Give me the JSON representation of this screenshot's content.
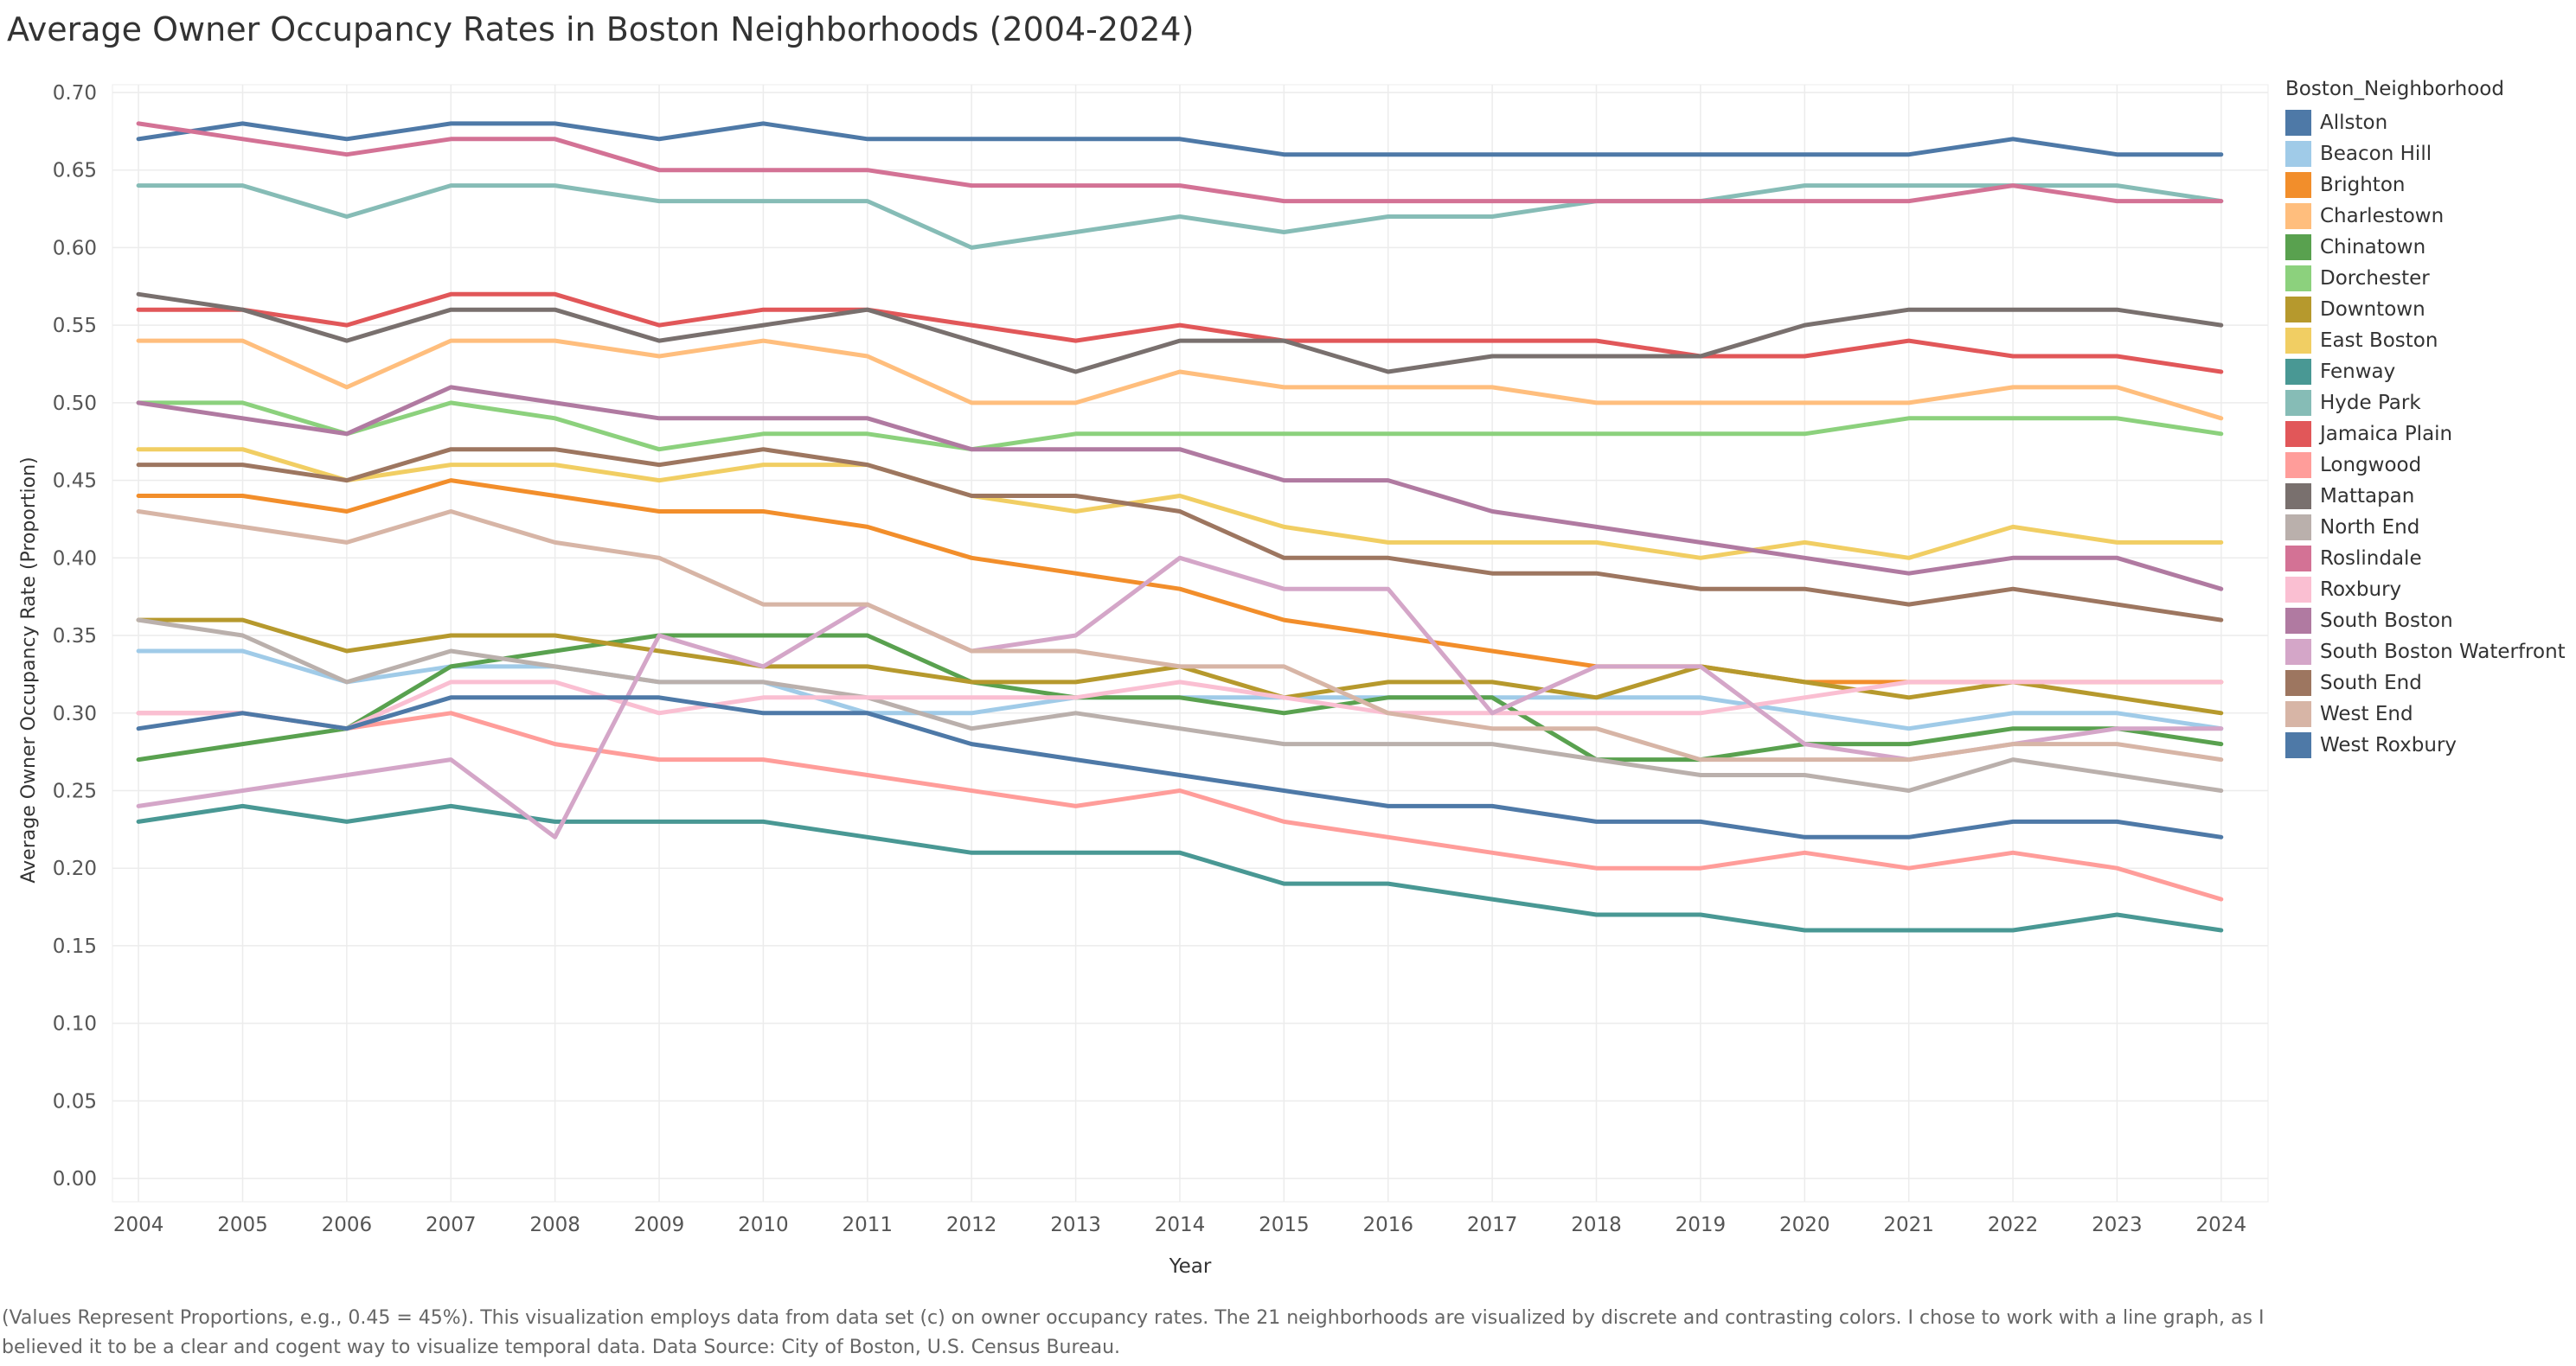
{
  "chart_data": {
    "type": "line",
    "title": "Average Owner Occupancy Rates in Boston Neighborhoods (2004-2024)",
    "xlabel": "Year",
    "ylabel": "Average Owner Occupancy Rate (Proportion)",
    "legend_title": "Boston_Neighborhood",
    "legend_position": "right",
    "grid": true,
    "xlim": [
      2003.75,
      2024.45
    ],
    "ylim": [
      -0.015,
      0.705
    ],
    "x_ticks": [
      "2004",
      "2005",
      "2006",
      "2007",
      "2008",
      "2009",
      "2010",
      "2011",
      "2012",
      "2013",
      "2014",
      "2015",
      "2016",
      "2017",
      "2018",
      "2019",
      "2020",
      "2021",
      "2022",
      "2023",
      "2024"
    ],
    "y_ticks": [
      "0.00",
      "0.05",
      "0.10",
      "0.15",
      "0.20",
      "0.25",
      "0.30",
      "0.35",
      "0.40",
      "0.45",
      "0.50",
      "0.55",
      "0.60",
      "0.65",
      "0.70"
    ],
    "x": [
      2004,
      2005,
      2006,
      2007,
      2008,
      2009,
      2010,
      2011,
      2012,
      2013,
      2014,
      2015,
      2016,
      2017,
      2018,
      2019,
      2020,
      2021,
      2022,
      2023,
      2024
    ],
    "series": [
      {
        "name": "Allston",
        "color": "#4e79a7",
        "values": [
          0.67,
          0.68,
          0.67,
          0.68,
          0.68,
          0.67,
          0.68,
          0.67,
          0.67,
          0.67,
          0.67,
          0.66,
          0.66,
          0.66,
          0.66,
          0.66,
          0.66,
          0.66,
          0.67,
          0.66,
          0.66
        ]
      },
      {
        "name": "Beacon Hill",
        "color": "#a0cbe8",
        "values": [
          0.34,
          0.34,
          0.32,
          0.33,
          0.33,
          0.32,
          0.32,
          0.3,
          0.3,
          0.31,
          0.31,
          0.31,
          0.31,
          0.31,
          0.31,
          0.31,
          0.3,
          0.29,
          0.3,
          0.3,
          0.29
        ]
      },
      {
        "name": "Brighton",
        "color": "#f28e2b",
        "values": [
          0.44,
          0.44,
          0.43,
          0.45,
          0.44,
          0.43,
          0.43,
          0.42,
          0.4,
          0.39,
          0.38,
          0.36,
          0.35,
          0.34,
          0.33,
          0.33,
          0.32,
          0.32,
          0.32,
          0.32,
          0.32
        ]
      },
      {
        "name": "Charlestown",
        "color": "#ffbe7d",
        "values": [
          0.54,
          0.54,
          0.51,
          0.54,
          0.54,
          0.53,
          0.54,
          0.53,
          0.5,
          0.5,
          0.52,
          0.51,
          0.51,
          0.51,
          0.5,
          0.5,
          0.5,
          0.5,
          0.51,
          0.51,
          0.49
        ]
      },
      {
        "name": "Chinatown",
        "color": "#59a14f",
        "values": [
          0.27,
          0.28,
          0.29,
          0.33,
          0.34,
          0.35,
          0.35,
          0.35,
          0.32,
          0.31,
          0.31,
          0.3,
          0.31,
          0.31,
          0.27,
          0.27,
          0.28,
          0.28,
          0.29,
          0.29,
          0.28
        ]
      },
      {
        "name": "Dorchester",
        "color": "#8cd17d",
        "values": [
          0.5,
          0.5,
          0.48,
          0.5,
          0.49,
          0.47,
          0.48,
          0.48,
          0.47,
          0.48,
          0.48,
          0.48,
          0.48,
          0.48,
          0.48,
          0.48,
          0.48,
          0.49,
          0.49,
          0.49,
          0.48
        ]
      },
      {
        "name": "Downtown",
        "color": "#b6992d",
        "values": [
          0.36,
          0.36,
          0.34,
          0.35,
          0.35,
          0.34,
          0.33,
          0.33,
          0.32,
          0.32,
          0.33,
          0.31,
          0.32,
          0.32,
          0.31,
          0.33,
          0.32,
          0.31,
          0.32,
          0.31,
          0.3
        ]
      },
      {
        "name": "East Boston",
        "color": "#f1ce63",
        "values": [
          0.47,
          0.47,
          0.45,
          0.46,
          0.46,
          0.45,
          0.46,
          0.46,
          0.44,
          0.43,
          0.44,
          0.42,
          0.41,
          0.41,
          0.41,
          0.4,
          0.41,
          0.4,
          0.42,
          0.41,
          0.41
        ]
      },
      {
        "name": "Fenway",
        "color": "#499894",
        "values": [
          0.23,
          0.24,
          0.23,
          0.24,
          0.23,
          0.23,
          0.23,
          0.22,
          0.21,
          0.21,
          0.21,
          0.19,
          0.19,
          0.18,
          0.17,
          0.17,
          0.16,
          0.16,
          0.16,
          0.17,
          0.16
        ]
      },
      {
        "name": "Hyde Park",
        "color": "#86bcb6",
        "values": [
          0.64,
          0.64,
          0.62,
          0.64,
          0.64,
          0.63,
          0.63,
          0.63,
          0.6,
          0.61,
          0.62,
          0.61,
          0.62,
          0.62,
          0.63,
          0.63,
          0.64,
          0.64,
          0.64,
          0.64,
          0.63
        ]
      },
      {
        "name": "Jamaica Plain",
        "color": "#e15759",
        "values": [
          0.56,
          0.56,
          0.55,
          0.57,
          0.57,
          0.55,
          0.56,
          0.56,
          0.55,
          0.54,
          0.55,
          0.54,
          0.54,
          0.54,
          0.54,
          0.53,
          0.53,
          0.54,
          0.53,
          0.53,
          0.52
        ]
      },
      {
        "name": "Longwood",
        "color": "#ff9d9a",
        "values": [
          0.3,
          0.3,
          0.29,
          0.3,
          0.28,
          0.27,
          0.27,
          0.26,
          0.25,
          0.24,
          0.25,
          0.23,
          0.22,
          0.21,
          0.2,
          0.2,
          0.21,
          0.2,
          0.21,
          0.2,
          0.18
        ]
      },
      {
        "name": "Mattapan",
        "color": "#79706e",
        "values": [
          0.57,
          0.56,
          0.54,
          0.56,
          0.56,
          0.54,
          0.55,
          0.56,
          0.54,
          0.52,
          0.54,
          0.54,
          0.52,
          0.53,
          0.53,
          0.53,
          0.55,
          0.56,
          0.56,
          0.56,
          0.55
        ]
      },
      {
        "name": "North End",
        "color": "#bab0ac",
        "values": [
          0.36,
          0.35,
          0.32,
          0.34,
          0.33,
          0.32,
          0.32,
          0.31,
          0.29,
          0.3,
          0.29,
          0.28,
          0.28,
          0.28,
          0.27,
          0.26,
          0.26,
          0.25,
          0.27,
          0.26,
          0.25
        ]
      },
      {
        "name": "Roslindale",
        "color": "#d37295",
        "values": [
          0.68,
          0.67,
          0.66,
          0.67,
          0.67,
          0.65,
          0.65,
          0.65,
          0.64,
          0.64,
          0.64,
          0.63,
          0.63,
          0.63,
          0.63,
          0.63,
          0.63,
          0.63,
          0.64,
          0.63,
          0.63
        ]
      },
      {
        "name": "Roxbury",
        "color": "#fabfd2",
        "values": [
          0.3,
          0.3,
          0.29,
          0.32,
          0.32,
          0.3,
          0.31,
          0.31,
          0.31,
          0.31,
          0.32,
          0.31,
          0.3,
          0.3,
          0.3,
          0.3,
          0.31,
          0.32,
          0.32,
          0.32,
          0.32
        ]
      },
      {
        "name": "South Boston",
        "color": "#b07aa1",
        "values": [
          0.5,
          0.49,
          0.48,
          0.51,
          0.5,
          0.49,
          0.49,
          0.49,
          0.47,
          0.47,
          0.47,
          0.45,
          0.45,
          0.43,
          0.42,
          0.41,
          0.4,
          0.39,
          0.4,
          0.4,
          0.38
        ]
      },
      {
        "name": "South Boston Waterfront",
        "color": "#d4a6c8",
        "values": [
          0.24,
          0.25,
          0.26,
          0.27,
          0.22,
          0.35,
          0.33,
          0.37,
          0.34,
          0.35,
          0.4,
          0.38,
          0.38,
          0.3,
          0.33,
          0.33,
          0.28,
          0.27,
          0.28,
          0.29,
          0.29
        ]
      },
      {
        "name": "South End",
        "color": "#9d7660",
        "values": [
          0.46,
          0.46,
          0.45,
          0.47,
          0.47,
          0.46,
          0.47,
          0.46,
          0.44,
          0.44,
          0.43,
          0.4,
          0.4,
          0.39,
          0.39,
          0.38,
          0.38,
          0.37,
          0.38,
          0.37,
          0.36
        ]
      },
      {
        "name": "West End",
        "color": "#d7b5a6",
        "values": [
          0.43,
          0.42,
          0.41,
          0.43,
          0.41,
          0.4,
          0.37,
          0.37,
          0.34,
          0.34,
          0.33,
          0.33,
          0.3,
          0.29,
          0.29,
          0.27,
          0.27,
          0.27,
          0.28,
          0.28,
          0.27
        ]
      },
      {
        "name": "West Roxbury",
        "color": "#4e79a7",
        "values": [
          0.29,
          0.3,
          0.29,
          0.31,
          0.31,
          0.31,
          0.3,
          0.3,
          0.28,
          0.27,
          0.26,
          0.25,
          0.24,
          0.24,
          0.23,
          0.23,
          0.22,
          0.22,
          0.23,
          0.23,
          0.22
        ]
      }
    ]
  },
  "caption": "(Values Represent Proportions, e.g., 0.45 = 45%). This visualization employs data from data set (c) on owner occupancy rates. The 21 neighborhoods are visualized by discrete and contrasting colors. I chose to work with a line graph, as I believed it to be a clear and cogent way to visualize temporal data. Data Source: City of Boston, U.S. Census Bureau."
}
